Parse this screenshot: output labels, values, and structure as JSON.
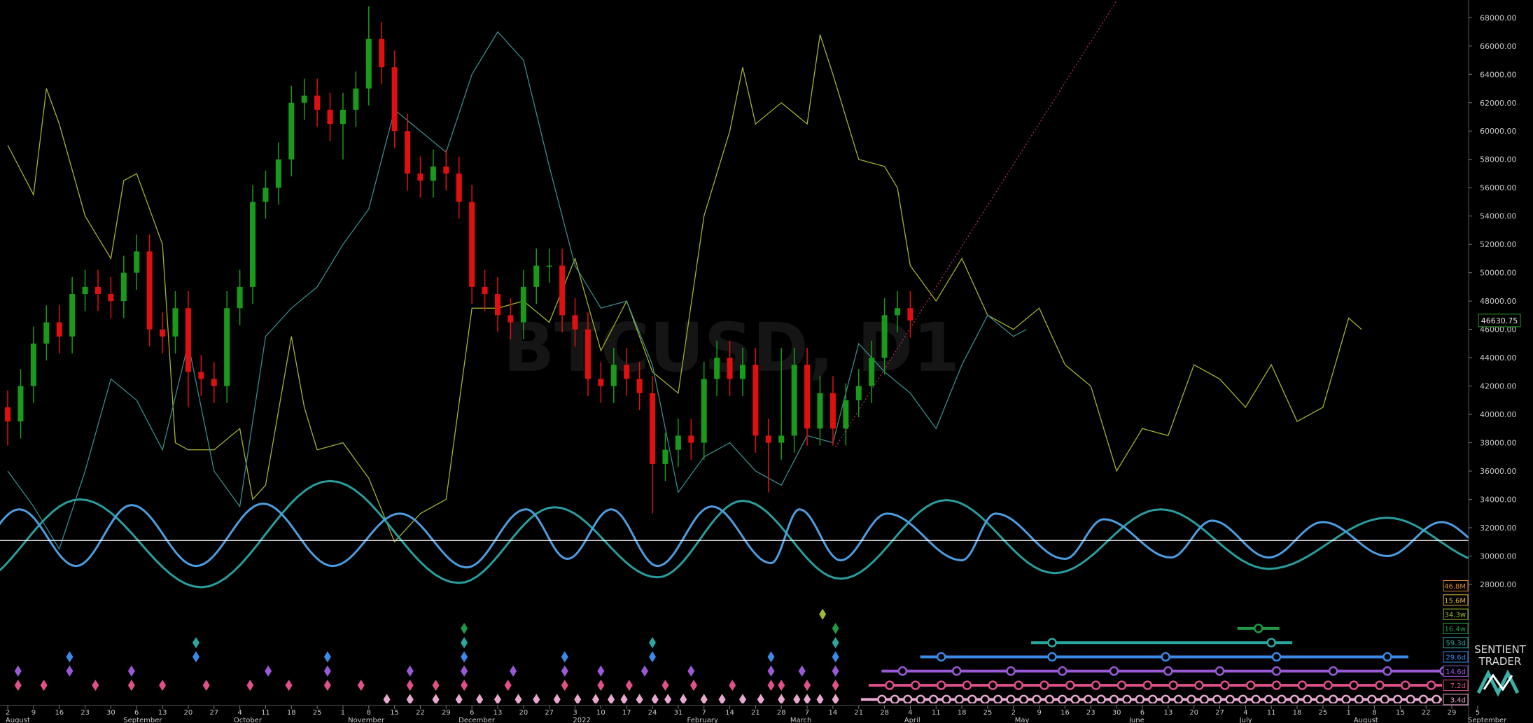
{
  "chart_data": {
    "type": "candlestick",
    "watermark": "BTCUSD, D1",
    "brand": {
      "line1": "SENTIENT",
      "line2": "TRADER"
    },
    "up_color": "#1a9a1a",
    "down_color": "#e01010",
    "xlim": [
      -0.3,
      56.65
    ],
    "ylim": [
      19600,
      69250
    ],
    "x": [
      0,
      0.5,
      1,
      1.5,
      2,
      2.5,
      3,
      3.5,
      4,
      4.5,
      5,
      5.5,
      6,
      6.5,
      7,
      7.5,
      8,
      8.5,
      9,
      9.5,
      10,
      10.5,
      11,
      11.5,
      12,
      12.5,
      13,
      13.5,
      14,
      14.5,
      15,
      15.5,
      16,
      16.5,
      17,
      17.5,
      18,
      18.5,
      19,
      19.5,
      20,
      20.5,
      21,
      21.5,
      22,
      22.5,
      23,
      23.5,
      24,
      24.5,
      25,
      25.5,
      26,
      26.5,
      27,
      27.5,
      28,
      28.5,
      29,
      29.5,
      30,
      30.5,
      31,
      31.5,
      32,
      32.5,
      33,
      33.5,
      34,
      34.5,
      35
    ],
    "open": [
      40500,
      39500,
      42000,
      45000,
      46500,
      45500,
      48500,
      49000,
      48500,
      48000,
      50000,
      51500,
      46000,
      45500,
      47500,
      43000,
      42500,
      42000,
      47500,
      49000,
      55000,
      56000,
      58000,
      62000,
      62500,
      61500,
      60500,
      61500,
      63000,
      66500,
      64500,
      60000,
      57000,
      56500,
      57500,
      57000,
      55000,
      49000,
      48500,
      47000,
      46500,
      49000,
      50500,
      50500,
      47000,
      46000,
      42500,
      42000,
      43500,
      42500,
      41500,
      36500,
      37500,
      38500,
      38000,
      42500,
      44000,
      42500,
      43500,
      38500,
      38000,
      38500,
      43500,
      39000,
      41500,
      39000,
      41000,
      42000,
      44000,
      47000,
      47500
    ],
    "high": [
      41700,
      43200,
      46200,
      47700,
      47700,
      49700,
      50200,
      50200,
      49700,
      51200,
      52700,
      52700,
      47200,
      48700,
      48700,
      44200,
      43700,
      48700,
      50200,
      56200,
      57200,
      59200,
      63200,
      63700,
      63700,
      62700,
      62700,
      64200,
      68800,
      67700,
      65700,
      61200,
      58200,
      58700,
      58700,
      58200,
      56200,
      50200,
      49700,
      48200,
      50200,
      51700,
      51700,
      51700,
      48200,
      47200,
      43700,
      44700,
      44700,
      43700,
      42700,
      38700,
      39700,
      39700,
      43700,
      45200,
      45200,
      44700,
      44700,
      39700,
      44700,
      44700,
      44700,
      42700,
      42700,
      42200,
      43200,
      45200,
      48200,
      48700,
      48700
    ],
    "low": [
      37800,
      38300,
      40800,
      43800,
      44300,
      44300,
      47300,
      47300,
      46800,
      46800,
      48800,
      44800,
      44300,
      44300,
      40500,
      41300,
      40800,
      40800,
      46300,
      47800,
      53800,
      54800,
      56800,
      60800,
      60300,
      59300,
      58000,
      60300,
      61800,
      63300,
      58800,
      55800,
      55300,
      55300,
      55800,
      53800,
      47800,
      47300,
      45800,
      45300,
      45300,
      47800,
      49300,
      45800,
      44800,
      41300,
      40800,
      40800,
      41300,
      40300,
      33000,
      35300,
      36300,
      36800,
      36800,
      41300,
      41300,
      41300,
      37300,
      34500,
      36800,
      37300,
      37800,
      37800,
      37800,
      37800,
      39800,
      40800,
      42800,
      45800,
      45400
    ],
    "close": [
      39500,
      42000,
      45000,
      46500,
      45500,
      48500,
      49000,
      48500,
      48000,
      50000,
      51500,
      46000,
      45500,
      47500,
      43000,
      42500,
      42000,
      47500,
      49000,
      55000,
      56000,
      58000,
      62000,
      62500,
      61500,
      60500,
      61500,
      63000,
      66500,
      64500,
      60000,
      57000,
      56500,
      57500,
      57000,
      55000,
      49000,
      48500,
      47000,
      46500,
      49000,
      50500,
      50500,
      47000,
      46000,
      42500,
      42000,
      43500,
      42500,
      41500,
      36500,
      37500,
      38500,
      38000,
      42500,
      44000,
      42500,
      43500,
      38500,
      38000,
      38500,
      43500,
      39000,
      41500,
      39000,
      41000,
      42000,
      44000,
      47000,
      47500,
      46630.75
    ],
    "series": [
      {
        "color": "#a6b02e",
        "x": [
          0,
          1,
          1.5,
          2,
          3,
          4,
          4.5,
          5,
          6,
          6.5,
          7,
          8,
          9,
          9.5,
          10,
          11,
          11.5,
          12,
          13,
          14,
          15,
          16,
          17,
          18,
          19,
          20,
          21,
          22,
          23,
          24,
          25,
          26,
          27,
          28,
          28.5,
          29,
          30,
          31,
          31.5,
          32,
          33,
          34,
          34.5,
          35,
          36,
          37,
          38,
          39,
          40,
          41,
          42,
          43,
          44,
          45,
          46,
          47,
          48,
          49,
          50,
          51,
          52,
          52.5
        ],
        "values": [
          59000,
          55500,
          63000,
          60500,
          54000,
          51000,
          56500,
          57000,
          52000,
          38000,
          37500,
          37500,
          39000,
          34000,
          35000,
          45500,
          40500,
          37500,
          38000,
          35500,
          31000,
          33000,
          34000,
          47500,
          47500,
          48000,
          46500,
          51000,
          44500,
          48000,
          43000,
          41500,
          54000,
          60000,
          64500,
          60500,
          62000,
          60500,
          66800,
          64000,
          58000,
          57500,
          56000,
          50500,
          48000,
          51000,
          47000,
          46000,
          47500,
          43500,
          42000,
          36000,
          39000,
          38500,
          43500,
          42500,
          40500,
          43500,
          39500,
          40500,
          46800,
          46000
        ]
      },
      {
        "color": "#3a8a8a",
        "x": [
          0,
          1,
          2,
          3,
          4,
          5,
          6,
          7,
          8,
          9,
          10,
          11,
          12,
          13,
          14,
          15,
          16,
          17,
          18,
          19,
          20,
          21,
          22,
          23,
          24,
          25,
          26,
          27,
          28,
          29,
          30,
          31,
          32,
          33,
          34,
          35,
          36,
          37,
          38,
          39,
          39.5
        ],
        "values": [
          36000,
          33500,
          30500,
          36000,
          42500,
          41000,
          37500,
          45000,
          36000,
          33500,
          45500,
          47500,
          49000,
          52000,
          54500,
          61500,
          60000,
          58500,
          64000,
          67000,
          65000,
          57500,
          50500,
          47500,
          48000,
          43500,
          34500,
          37000,
          38000,
          36000,
          35000,
          38500,
          38000,
          45000,
          43000,
          41500,
          39000,
          43500,
          47000,
          45500,
          46000
        ]
      }
    ],
    "waves": [
      {
        "color": "#2a9d9d",
        "x": [
          -1.5,
          2.8,
          7.5,
          12.5,
          17.5,
          21.2,
          25.2,
          28.5,
          32.3,
          36.4,
          40.6,
          44.7,
          48.9,
          53.5,
          57.5
        ],
        "values": [
          27900,
          34000,
          27800,
          35300,
          28100,
          33450,
          28500,
          33900,
          28400,
          33950,
          28800,
          33300,
          29100,
          32700,
          29500
        ]
      },
      {
        "color": "#4d9de0",
        "x": [
          -1.8,
          0.45,
          2.65,
          4.8,
          7.3,
          9.9,
          12.6,
          15.2,
          17.8,
          20.1,
          21.7,
          23.4,
          25.2,
          27.3,
          29.6,
          30.7,
          32.3,
          34.1,
          37,
          38.3,
          41,
          42.5,
          45.1,
          46.7,
          48.9,
          51,
          53.5,
          55.6,
          57.5
        ],
        "values": [
          29300,
          33300,
          29300,
          33600,
          29300,
          33700,
          29300,
          33000,
          29200,
          33300,
          29800,
          33300,
          29300,
          33500,
          29500,
          33300,
          29700,
          33000,
          29700,
          33000,
          29800,
          32600,
          29900,
          32500,
          29900,
          32400,
          30000,
          32400,
          30500
        ]
      }
    ],
    "reference_line": {
      "value": 31100,
      "color": "#ffffff"
    },
    "trendline": {
      "color": "#c03070",
      "x": [
        32.1,
        43
      ],
      "values": [
        37700,
        69200
      ]
    },
    "yticks": [
      {
        "value": 28000,
        "label": "28000.00"
      },
      {
        "value": 30000,
        "label": "30000.00"
      },
      {
        "value": 32000,
        "label": "32000.00"
      },
      {
        "value": 34000,
        "label": "34000.00"
      },
      {
        "value": 36000,
        "label": "36000.00"
      },
      {
        "value": 38000,
        "label": "38000.00"
      },
      {
        "value": 40000,
        "label": "40000.00"
      },
      {
        "value": 42000,
        "label": "42000.00"
      },
      {
        "value": 44000,
        "label": "44000.00"
      },
      {
        "value": 46000,
        "label": "46000.00"
      },
      {
        "value": 48000,
        "label": "48000.00"
      },
      {
        "value": 50000,
        "label": "50000.00"
      },
      {
        "value": 52000,
        "label": "52000.00"
      },
      {
        "value": 54000,
        "label": "54000.00"
      },
      {
        "value": 56000,
        "label": "56000.00"
      },
      {
        "value": 58000,
        "label": "58000.00"
      },
      {
        "value": 60000,
        "label": "60000.00"
      },
      {
        "value": 62000,
        "label": "62000.00"
      },
      {
        "value": 64000,
        "label": "64000.00"
      },
      {
        "value": 66000,
        "label": "66000.00"
      },
      {
        "value": 68000,
        "label": "68000.00"
      }
    ],
    "xticks": [
      {
        "value": 0,
        "label": "2"
      },
      {
        "value": 1,
        "label": "9"
      },
      {
        "value": 2,
        "label": "16"
      },
      {
        "value": 3,
        "label": "23"
      },
      {
        "value": 4,
        "label": "30"
      },
      {
        "value": 5,
        "label": "6"
      },
      {
        "value": 6,
        "label": "13"
      },
      {
        "value": 7,
        "label": "20"
      },
      {
        "value": 8,
        "label": "27"
      },
      {
        "value": 9,
        "label": "4"
      },
      {
        "value": 10,
        "label": "11"
      },
      {
        "value": 11,
        "label": "18"
      },
      {
        "value": 12,
        "label": "25"
      },
      {
        "value": 13,
        "label": "1"
      },
      {
        "value": 14,
        "label": "8"
      },
      {
        "value": 15,
        "label": "15"
      },
      {
        "value": 16,
        "label": "22"
      },
      {
        "value": 17,
        "label": "29"
      },
      {
        "value": 18,
        "label": "6"
      },
      {
        "value": 19,
        "label": "13"
      },
      {
        "value": 20,
        "label": "20"
      },
      {
        "value": 21,
        "label": "27"
      },
      {
        "value": 22,
        "label": "3"
      },
      {
        "value": 23,
        "label": "10"
      },
      {
        "value": 24,
        "label": "17"
      },
      {
        "value": 25,
        "label": "24"
      },
      {
        "value": 26,
        "label": "31"
      },
      {
        "value": 27,
        "label": "7"
      },
      {
        "value": 28,
        "label": "14"
      },
      {
        "value": 29,
        "label": "21"
      },
      {
        "value": 30,
        "label": "28"
      },
      {
        "value": 31,
        "label": "7"
      },
      {
        "value": 32,
        "label": "14"
      },
      {
        "value": 33,
        "label": "21"
      },
      {
        "value": 34,
        "label": "28"
      },
      {
        "value": 35,
        "label": "4"
      },
      {
        "value": 36,
        "label": "11"
      },
      {
        "value": 37,
        "label": "18"
      },
      {
        "value": 38,
        "label": "25"
      },
      {
        "value": 39,
        "label": "2"
      },
      {
        "value": 40,
        "label": "9"
      },
      {
        "value": 41,
        "label": "16"
      },
      {
        "value": 42,
        "label": "23"
      },
      {
        "value": 43,
        "label": "30"
      },
      {
        "value": 44,
        "label": "6"
      },
      {
        "value": 45,
        "label": "13"
      },
      {
        "value": 46,
        "label": "20"
      },
      {
        "value": 47,
        "label": "27"
      },
      {
        "value": 48,
        "label": "4"
      },
      {
        "value": 49,
        "label": "11"
      },
      {
        "value": 50,
        "label": "18"
      },
      {
        "value": 51,
        "label": "25"
      },
      {
        "value": 52,
        "label": "1"
      },
      {
        "value": 53,
        "label": "8"
      },
      {
        "value": 54,
        "label": "15"
      },
      {
        "value": 55,
        "label": "22"
      },
      {
        "value": 56,
        "label": "29"
      },
      {
        "value": 57,
        "label": "5"
      }
    ],
    "month_ticks": [
      {
        "value": -0.14,
        "label": "August"
      },
      {
        "value": 4.43,
        "label": "September"
      },
      {
        "value": 8.71,
        "label": "October"
      },
      {
        "value": 13.14,
        "label": "November"
      },
      {
        "value": 17.43,
        "label": "December"
      },
      {
        "value": 21.86,
        "label": "2022"
      },
      {
        "value": 26.29,
        "label": "February"
      },
      {
        "value": 30.29,
        "label": "March"
      },
      {
        "value": 34.71,
        "label": "April"
      },
      {
        "value": 39,
        "label": "May"
      },
      {
        "value": 43.43,
        "label": "June"
      },
      {
        "value": 47.71,
        "label": "July"
      },
      {
        "value": 52.14,
        "label": "August"
      },
      {
        "value": 56.57,
        "label": "September"
      }
    ],
    "cycles": [
      {
        "name": "46.8M",
        "color": "#e08a2a",
        "troughs": [],
        "projections": []
      },
      {
        "name": "15.6M",
        "color": "#e0b040",
        "troughs": [],
        "projections": []
      },
      {
        "name": "34.3w",
        "color": "#9aba3a",
        "troughs": [
          31.6
        ],
        "projections": []
      },
      {
        "name": "16.4w",
        "color": "#1f9a45",
        "troughs": [
          17.7,
          32.1
        ],
        "projections": [
          48.5
        ]
      },
      {
        "name": "59.3d",
        "color": "#2aa8a0",
        "troughs": [
          7.3,
          17.7,
          25,
          32.1
        ],
        "projections": [
          40.5,
          49
        ]
      },
      {
        "name": "29.6d",
        "color": "#3a8ae8",
        "troughs": [
          2.4,
          7.3,
          12.4,
          17.7,
          21.6,
          25,
          29.6,
          32.1
        ],
        "projections": [
          36.2,
          40.5,
          44.9,
          49.2,
          53.5
        ]
      },
      {
        "name": "14.6d",
        "color": "#9a5ad8",
        "troughs": [
          0.4,
          2.4,
          4.8,
          10.1,
          12.4,
          15.6,
          17.7,
          19.6,
          21.6,
          23,
          24.7,
          26.5,
          29.6,
          30.8,
          32.1
        ],
        "projections": [
          34.7,
          36.8,
          38.9,
          40.9,
          42.9,
          45,
          47,
          49.2,
          51.4,
          53.5,
          55.7
        ]
      },
      {
        "name": "7.2d",
        "color": "#e0508a",
        "troughs": [
          0.4,
          1.4,
          3.4,
          4.8,
          6,
          7.7,
          9.4,
          10.9,
          12.4,
          13.7,
          15.6,
          16.6,
          17.7,
          19.4,
          21.6,
          23,
          24.1,
          25.5,
          26.6,
          28.1,
          29.6,
          30,
          31,
          32.1
        ],
        "projections": [
          34.2,
          35.2,
          36.2,
          37.2,
          38.2,
          39.2,
          40.2,
          41.2,
          42.2,
          43.2,
          44.2,
          45.2,
          46.2,
          47.2,
          48.2,
          49.2,
          50.2,
          51.2,
          52.2,
          53.2,
          54.2,
          55.2
        ]
      },
      {
        "name": "3.4d",
        "color": "#e8a8d0",
        "troughs": [
          14.7,
          15.6,
          16.6,
          17.5,
          18.3,
          19,
          19.8,
          20.5,
          21.3,
          22.1,
          22.8,
          23.4,
          23.9,
          24.5,
          25.1,
          25.6,
          26.2,
          27,
          27.7,
          28.5,
          29.2,
          30,
          30.6,
          31,
          31.5,
          32.1
        ],
        "projections": [
          33.9,
          34.4,
          34.9,
          35.4,
          35.9,
          36.4,
          36.9,
          37.4,
          37.9,
          38.4,
          38.9,
          39.4,
          39.9,
          40.4,
          40.9,
          41.4,
          41.9,
          42.4,
          42.9,
          43.4,
          43.9,
          44.4,
          44.9,
          45.4,
          45.9,
          46.4,
          46.9,
          47.4,
          47.9,
          48.4,
          48.9,
          49.4,
          49.9,
          50.4,
          50.9,
          51.4,
          51.9,
          52.4,
          52.9,
          53.4,
          53.9,
          54.4,
          54.9,
          55.4
        ]
      }
    ]
  }
}
